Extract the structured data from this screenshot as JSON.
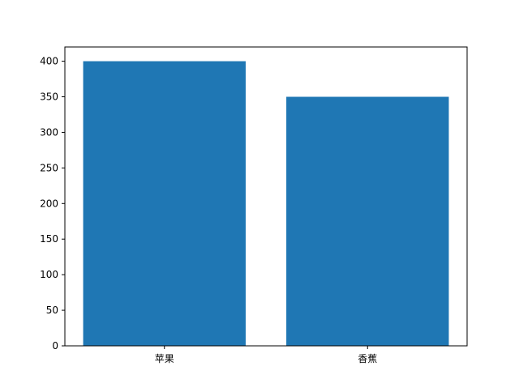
{
  "chart_data": {
    "type": "bar",
    "title": "",
    "xlabel": "",
    "ylabel": "",
    "categories": [
      "苹果",
      "香蕉"
    ],
    "values": [
      400,
      350
    ],
    "bar_color": "#1f77b4",
    "ylim": [
      0,
      420
    ],
    "xlim": [
      -0.49,
      1.49
    ],
    "bar_width": 0.8,
    "yticks": [
      0,
      50,
      100,
      150,
      200,
      250,
      300,
      350,
      400
    ],
    "grid": false
  }
}
